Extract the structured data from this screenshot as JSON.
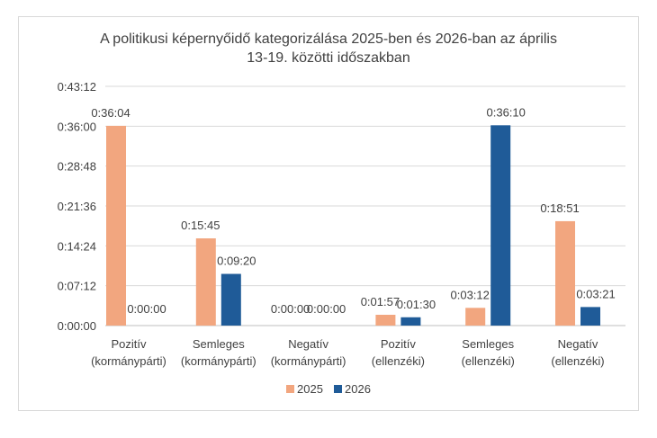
{
  "chart_data": {
    "type": "bar",
    "title_line1": "A politikusi képernyőidő kategorizálása 2025-ben és 2026-ban az április",
    "title_line2": "13-19. közötti időszakban",
    "categories": [
      [
        "Pozitív",
        "(kormánypárti)"
      ],
      [
        "Semleges",
        "(kormánypárti)"
      ],
      [
        "Negatív",
        "(kormánypárti)"
      ],
      [
        "Pozitív",
        "(ellenzéki)"
      ],
      [
        "Semleges",
        "(ellenzéki)"
      ],
      [
        "Negatív",
        "(ellenzéki)"
      ]
    ],
    "series": [
      {
        "name": "2025",
        "color": "#F2A67F",
        "values": [
          "0:36:04",
          "0:15:45",
          "0:00:00",
          "0:01:57",
          "0:03:12",
          "0:18:51"
        ]
      },
      {
        "name": "2026",
        "color": "#1F5B98",
        "values": [
          "0:00:00",
          "0:09:20",
          "0:00:00",
          "0:01:30",
          "0:36:10",
          "0:03:21"
        ]
      }
    ],
    "y_ticks": [
      "0:00:00",
      "0:07:12",
      "0:14:24",
      "0:21:36",
      "0:28:48",
      "0:36:00",
      "0:43:12"
    ],
    "ylim": [
      "0:00:00",
      "0:43:12"
    ],
    "grid": true,
    "legend": "bottom"
  }
}
